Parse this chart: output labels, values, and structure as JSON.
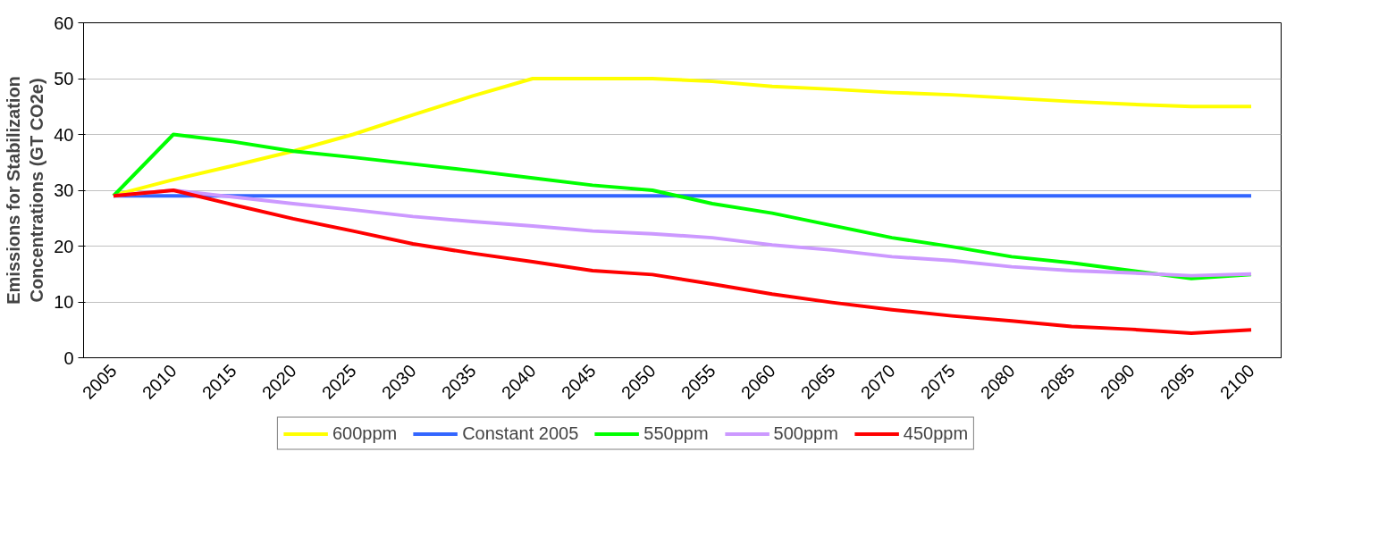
{
  "chart_data": {
    "type": "line",
    "ylabel": "Emissions for Stabilization\nConcentrations (GT CO2e)",
    "categories": [
      "2005",
      "2010",
      "2015",
      "2020",
      "2025",
      "2030",
      "2035",
      "2040",
      "2045",
      "2050",
      "2055",
      "2060",
      "2065",
      "2070",
      "2075",
      "2080",
      "2085",
      "2090",
      "2095",
      "2100"
    ],
    "series": [
      {
        "name": "600ppm",
        "color": "#ffff00",
        "values": [
          29.1,
          31.9,
          34.4,
          37,
          40,
          43.5,
          46.9,
          50,
          50,
          50,
          49.5,
          48.6,
          48.1,
          47.5,
          47.1,
          46.5,
          45.9,
          45.4,
          45,
          45
        ]
      },
      {
        "name": "Constant 2005",
        "color": "#3366ff",
        "values": [
          29,
          29,
          29,
          29,
          29,
          29,
          29,
          29,
          29,
          29,
          29,
          29,
          29,
          29,
          29,
          29,
          29,
          29,
          29,
          29
        ]
      },
      {
        "name": "550ppm",
        "color": "#00ff00",
        "values": [
          29,
          40,
          38.7,
          37,
          35.9,
          34.7,
          33.5,
          32.2,
          30.9,
          30,
          27.6,
          25.9,
          23.7,
          21.5,
          19.9,
          18.1,
          17,
          15.6,
          14.2,
          14.9
        ]
      },
      {
        "name": "500ppm",
        "color": "#cc99ff",
        "values": [
          29,
          30,
          28.8,
          27.6,
          26.5,
          25.3,
          24.4,
          23.6,
          22.7,
          22.2,
          21.5,
          20.2,
          19.3,
          18.1,
          17.4,
          16.3,
          15.6,
          15.2,
          14.7,
          15
        ]
      },
      {
        "name": "450ppm",
        "color": "#ff0000",
        "values": [
          29,
          30,
          27.4,
          24.9,
          22.7,
          20.4,
          18.7,
          17.2,
          15.6,
          14.9,
          13.2,
          11.4,
          9.9,
          8.6,
          7.5,
          6.6,
          5.6,
          5.1,
          4.4,
          5
        ]
      }
    ],
    "ylim": [
      0,
      60
    ],
    "yticks": [
      0,
      10,
      20,
      30,
      40,
      50,
      60
    ],
    "grid": "y",
    "legend": "bottom",
    "marker": "none",
    "line_style": "solid"
  }
}
